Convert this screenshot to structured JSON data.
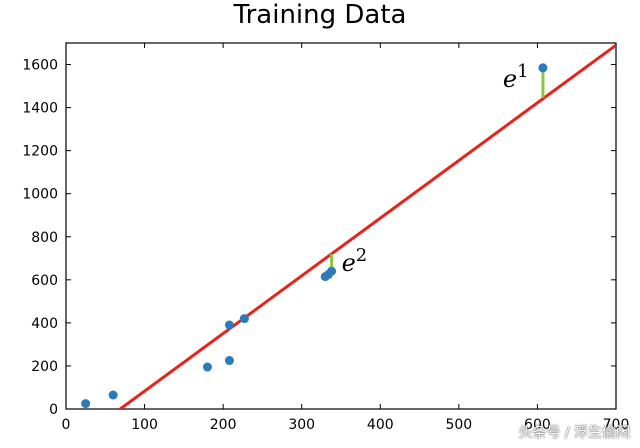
{
  "chart_data": {
    "type": "scatter",
    "title": "Training Data",
    "xlabel": "",
    "ylabel": "",
    "xlim": [
      0,
      700
    ],
    "ylim": [
      0,
      1700
    ],
    "xticks": [
      0,
      100,
      200,
      300,
      400,
      500,
      600,
      700
    ],
    "xtick_labels": [
      "0",
      "100",
      "200",
      "300",
      "400",
      "500",
      "600",
      "700"
    ],
    "yticks": [
      0,
      200,
      400,
      600,
      800,
      1000,
      1200,
      1400,
      1600
    ],
    "ytick_labels": [
      "0",
      "200",
      "400",
      "600",
      "800",
      "1000",
      "1200",
      "1400",
      "1600"
    ],
    "grid": false,
    "series": [
      {
        "kind": "scatter",
        "color": "#2b7bba",
        "points": [
          {
            "x": 25,
            "y": 25
          },
          {
            "x": 60,
            "y": 65
          },
          {
            "x": 180,
            "y": 195
          },
          {
            "x": 208,
            "y": 225
          },
          {
            "x": 208,
            "y": 390
          },
          {
            "x": 227,
            "y": 420
          },
          {
            "x": 330,
            "y": 615
          },
          {
            "x": 334,
            "y": 625
          },
          {
            "x": 338,
            "y": 640
          },
          {
            "x": 607,
            "y": 1585
          }
        ]
      },
      {
        "kind": "line",
        "color": "#e8231b",
        "x": [
          69,
          700
        ],
        "y": [
          0,
          1690
        ]
      }
    ],
    "errors": [
      {
        "label_base": "e",
        "label_sup": "1",
        "x": 607,
        "y_from": 1445,
        "y_to": 1585
      },
      {
        "label_base": "e",
        "label_sup": "2",
        "x": 338,
        "y_from": 640,
        "y_to": 720
      }
    ],
    "error_color": "#8dc63f"
  },
  "watermark": "头条号 / 浮生偷闲"
}
